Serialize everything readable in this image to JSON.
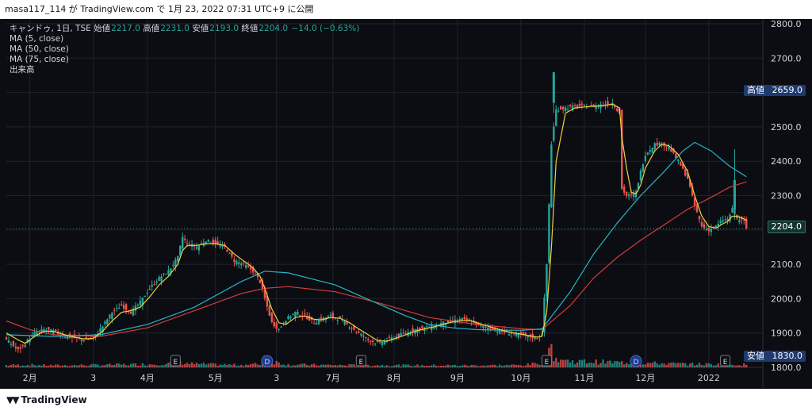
{
  "header": {
    "text": "masa117_114 が TradingView.com で 1月 23, 2022 07:31 UTC+9 に公開"
  },
  "legend": {
    "symbol": "キャンドゥ, 1日, TSE",
    "open_label": "始値",
    "open": "2217.0",
    "high_label": "高値",
    "high": "2231.0",
    "low_label": "安値",
    "low": "2193.0",
    "close_label": "終値",
    "close": "2204.0",
    "change": "−14.0 (−0.63%)",
    "ma1": "MA (5, close)",
    "ma2": "MA (50, close)",
    "ma3": "MA (75, close)",
    "volume": "出来高"
  },
  "price_tags": {
    "high_label": "高値",
    "high_value": "2659.0",
    "last_value": "2204.0",
    "low_label": "安値",
    "low_value": "1830.0"
  },
  "colors": {
    "background": "#0c0d12",
    "up": "#26a69a",
    "down": "#ef5350",
    "ma5": "#f0d040",
    "ma50": "#26b5c8",
    "ma75": "#d43a3a",
    "grid": "#1e222d"
  },
  "footer": {
    "brand": "TradingView",
    "logo_icon": "tradingview-logo-icon"
  },
  "chart_data": {
    "type": "candlestick",
    "title": "キャンドゥ, 1日, TSE",
    "ylim": [
      1800,
      2800
    ],
    "y_ticks": [
      1800,
      1900,
      2000,
      2100,
      2200,
      2300,
      2400,
      2500,
      2600,
      2700,
      2800
    ],
    "y_tick_labels": [
      "1800.0",
      "1900.0",
      "2000.0",
      "2100.0",
      "2200.0",
      "2300.0",
      "2400.0",
      "2500.0",
      "2600.0",
      "2700.0",
      "2800.0"
    ],
    "x_tick_labels": [
      "2月",
      "3",
      "4月",
      "5月",
      "3",
      "7月",
      "8月",
      "9月",
      "10月",
      "11月",
      "12月",
      "2022"
    ],
    "x_ticks_day": [
      10,
      37,
      60,
      89,
      115,
      139,
      165,
      192,
      219,
      246,
      272,
      299
    ],
    "events": [
      {
        "day": 72,
        "label": "E"
      },
      {
        "day": 111,
        "label": "D"
      },
      {
        "day": 151,
        "label": "E"
      },
      {
        "day": 230,
        "label": "E"
      },
      {
        "day": 268,
        "label": "D"
      },
      {
        "day": 306,
        "label": "E"
      }
    ],
    "close_path": [
      [
        0,
        1880
      ],
      [
        5,
        1850
      ],
      [
        8,
        1870
      ],
      [
        12,
        1900
      ],
      [
        16,
        1910
      ],
      [
        20,
        1905
      ],
      [
        25,
        1890
      ],
      [
        29,
        1885
      ],
      [
        33,
        1880
      ],
      [
        37,
        1885
      ],
      [
        41,
        1920
      ],
      [
        45,
        1960
      ],
      [
        49,
        1980
      ],
      [
        53,
        1960
      ],
      [
        57,
        1990
      ],
      [
        61,
        2030
      ],
      [
        65,
        2060
      ],
      [
        69,
        2080
      ],
      [
        73,
        2120
      ],
      [
        75,
        2180
      ],
      [
        77,
        2160
      ],
      [
        81,
        2150
      ],
      [
        85,
        2170
      ],
      [
        89,
        2160
      ],
      [
        93,
        2150
      ],
      [
        97,
        2110
      ],
      [
        101,
        2100
      ],
      [
        105,
        2080
      ],
      [
        108,
        2050
      ],
      [
        110,
        2000
      ],
      [
        113,
        1930
      ],
      [
        116,
        1910
      ],
      [
        119,
        1940
      ],
      [
        123,
        1960
      ],
      [
        127,
        1950
      ],
      [
        131,
        1930
      ],
      [
        134,
        1940
      ],
      [
        138,
        1950
      ],
      [
        142,
        1940
      ],
      [
        146,
        1920
      ],
      [
        150,
        1900
      ],
      [
        154,
        1880
      ],
      [
        158,
        1870
      ],
      [
        162,
        1880
      ],
      [
        166,
        1890
      ],
      [
        170,
        1900
      ],
      [
        174,
        1910
      ],
      [
        178,
        1915
      ],
      [
        182,
        1920
      ],
      [
        186,
        1930
      ],
      [
        190,
        1935
      ],
      [
        194,
        1940
      ],
      [
        198,
        1930
      ],
      [
        202,
        1920
      ],
      [
        206,
        1915
      ],
      [
        210,
        1905
      ],
      [
        214,
        1900
      ],
      [
        218,
        1895
      ],
      [
        222,
        1890
      ],
      [
        226,
        1885
      ],
      [
        228,
        1900
      ],
      [
        230,
        2100
      ],
      [
        232,
        2450
      ],
      [
        234,
        2550
      ],
      [
        238,
        2555
      ],
      [
        242,
        2560
      ],
      [
        246,
        2560
      ],
      [
        250,
        2560
      ],
      [
        254,
        2565
      ],
      [
        258,
        2570
      ],
      [
        261,
        2540
      ],
      [
        262,
        2320
      ],
      [
        264,
        2300
      ],
      [
        266,
        2300
      ],
      [
        268,
        2310
      ],
      [
        270,
        2370
      ],
      [
        272,
        2420
      ],
      [
        276,
        2450
      ],
      [
        279,
        2450
      ],
      [
        282,
        2440
      ],
      [
        286,
        2400
      ],
      [
        290,
        2350
      ],
      [
        293,
        2270
      ],
      [
        296,
        2210
      ],
      [
        299,
        2200
      ],
      [
        302,
        2210
      ],
      [
        305,
        2230
      ],
      [
        307,
        2230
      ],
      [
        309,
        2260
      ],
      [
        311,
        2232
      ],
      [
        314,
        2225
      ],
      [
        315,
        2204
      ]
    ],
    "ma5_path": [
      [
        0,
        1900
      ],
      [
        5,
        1880
      ],
      [
        8,
        1870
      ],
      [
        12,
        1890
      ],
      [
        16,
        1905
      ],
      [
        20,
        1905
      ],
      [
        25,
        1895
      ],
      [
        29,
        1888
      ],
      [
        33,
        1883
      ],
      [
        37,
        1884
      ],
      [
        41,
        1905
      ],
      [
        45,
        1935
      ],
      [
        49,
        1960
      ],
      [
        53,
        1965
      ],
      [
        57,
        1975
      ],
      [
        61,
        2005
      ],
      [
        65,
        2040
      ],
      [
        69,
        2065
      ],
      [
        73,
        2100
      ],
      [
        75,
        2140
      ],
      [
        77,
        2155
      ],
      [
        81,
        2155
      ],
      [
        85,
        2160
      ],
      [
        89,
        2160
      ],
      [
        93,
        2155
      ],
      [
        97,
        2130
      ],
      [
        101,
        2110
      ],
      [
        105,
        2090
      ],
      [
        108,
        2065
      ],
      [
        110,
        2030
      ],
      [
        113,
        1970
      ],
      [
        116,
        1930
      ],
      [
        119,
        1925
      ],
      [
        123,
        1945
      ],
      [
        127,
        1950
      ],
      [
        131,
        1940
      ],
      [
        134,
        1938
      ],
      [
        138,
        1945
      ],
      [
        142,
        1943
      ],
      [
        146,
        1930
      ],
      [
        150,
        1912
      ],
      [
        154,
        1895
      ],
      [
        158,
        1878
      ],
      [
        162,
        1876
      ],
      [
        166,
        1885
      ],
      [
        170,
        1895
      ],
      [
        174,
        1905
      ],
      [
        178,
        1912
      ],
      [
        182,
        1918
      ],
      [
        186,
        1926
      ],
      [
        190,
        1932
      ],
      [
        194,
        1937
      ],
      [
        198,
        1935
      ],
      [
        202,
        1926
      ],
      [
        206,
        1918
      ],
      [
        210,
        1910
      ],
      [
        214,
        1903
      ],
      [
        218,
        1898
      ],
      [
        222,
        1893
      ],
      [
        226,
        1888
      ],
      [
        228,
        1890
      ],
      [
        230,
        1960
      ],
      [
        232,
        2150
      ],
      [
        234,
        2400
      ],
      [
        238,
        2540
      ],
      [
        242,
        2555
      ],
      [
        246,
        2558
      ],
      [
        250,
        2560
      ],
      [
        254,
        2562
      ],
      [
        258,
        2566
      ],
      [
        261,
        2555
      ],
      [
        262,
        2470
      ],
      [
        264,
        2380
      ],
      [
        266,
        2310
      ],
      [
        268,
        2305
      ],
      [
        270,
        2330
      ],
      [
        272,
        2380
      ],
      [
        276,
        2430
      ],
      [
        279,
        2450
      ],
      [
        282,
        2445
      ],
      [
        286,
        2420
      ],
      [
        290,
        2370
      ],
      [
        293,
        2300
      ],
      [
        296,
        2240
      ],
      [
        299,
        2210
      ],
      [
        302,
        2205
      ],
      [
        305,
        2218
      ],
      [
        307,
        2225
      ],
      [
        309,
        2240
      ],
      [
        311,
        2240
      ],
      [
        314,
        2232
      ],
      [
        315,
        2228
      ]
    ],
    "ma50_path": [
      [
        0,
        1895
      ],
      [
        20,
        1890
      ],
      [
        40,
        1895
      ],
      [
        60,
        1925
      ],
      [
        80,
        1975
      ],
      [
        100,
        2050
      ],
      [
        110,
        2080
      ],
      [
        120,
        2075
      ],
      [
        140,
        2040
      ],
      [
        160,
        1980
      ],
      [
        170,
        1950
      ],
      [
        180,
        1925
      ],
      [
        190,
        1915
      ],
      [
        200,
        1910
      ],
      [
        210,
        1908
      ],
      [
        220,
        1908
      ],
      [
        228,
        1912
      ],
      [
        240,
        2020
      ],
      [
        250,
        2130
      ],
      [
        260,
        2220
      ],
      [
        270,
        2300
      ],
      [
        280,
        2370
      ],
      [
        288,
        2430
      ],
      [
        293,
        2455
      ],
      [
        300,
        2430
      ],
      [
        308,
        2385
      ],
      [
        315,
        2355
      ]
    ],
    "ma75_path": [
      [
        0,
        1935
      ],
      [
        10,
        1910
      ],
      [
        20,
        1895
      ],
      [
        40,
        1890
      ],
      [
        60,
        1915
      ],
      [
        80,
        1965
      ],
      [
        100,
        2015
      ],
      [
        110,
        2030
      ],
      [
        120,
        2035
      ],
      [
        140,
        2020
      ],
      [
        160,
        1985
      ],
      [
        180,
        1945
      ],
      [
        200,
        1925
      ],
      [
        220,
        1912
      ],
      [
        228,
        1910
      ],
      [
        240,
        1980
      ],
      [
        250,
        2060
      ],
      [
        260,
        2120
      ],
      [
        270,
        2170
      ],
      [
        280,
        2215
      ],
      [
        290,
        2260
      ],
      [
        300,
        2295
      ],
      [
        308,
        2325
      ],
      [
        315,
        2340
      ]
    ],
    "volume_profile": [
      [
        0,
        0.2
      ],
      [
        10,
        0.22
      ],
      [
        20,
        0.18
      ],
      [
        30,
        0.2
      ],
      [
        40,
        0.22
      ],
      [
        50,
        0.25
      ],
      [
        60,
        0.28
      ],
      [
        70,
        0.35
      ],
      [
        75,
        0.4
      ],
      [
        80,
        0.3
      ],
      [
        90,
        0.25
      ],
      [
        100,
        0.22
      ],
      [
        108,
        0.3
      ],
      [
        110,
        1.0
      ],
      [
        112,
        0.6
      ],
      [
        120,
        0.25
      ],
      [
        140,
        0.2
      ],
      [
        160,
        0.2
      ],
      [
        180,
        0.18
      ],
      [
        200,
        0.18
      ],
      [
        220,
        0.2
      ],
      [
        228,
        0.4
      ],
      [
        230,
        0.7
      ],
      [
        231,
        2.6
      ],
      [
        232,
        1.4
      ],
      [
        234,
        0.8
      ],
      [
        240,
        0.55
      ],
      [
        250,
        0.5
      ],
      [
        260,
        0.45
      ],
      [
        270,
        0.4
      ],
      [
        280,
        0.35
      ],
      [
        290,
        0.3
      ],
      [
        300,
        0.28
      ],
      [
        315,
        0.25
      ]
    ]
  }
}
